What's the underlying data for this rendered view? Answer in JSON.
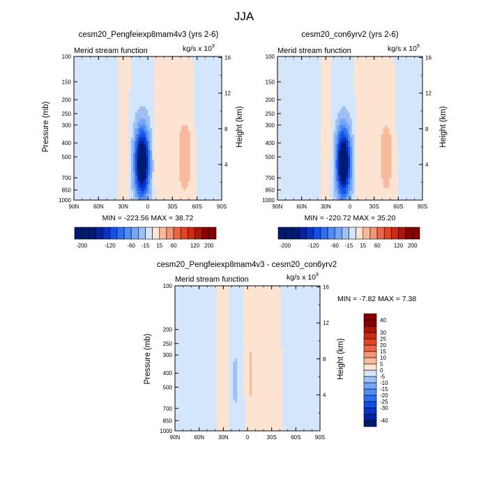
{
  "figure": {
    "title": "JJA"
  },
  "chart_data": [
    {
      "type": "heatmap",
      "title": "cesm20_Pengfeiexp8mam4v3 (yrs 2-6)",
      "subtitle_left": "Merid stream function",
      "subtitle_right": "kg/s x 10",
      "unit_exponent": "9",
      "ylabel": "Pressure (mb)",
      "ylabel_right": "Height (km)",
      "x_ticks": [
        "90N",
        "60N",
        "30N",
        "0",
        "30S",
        "60S",
        "90S"
      ],
      "y_ticks": [
        "100",
        "150",
        "200",
        "250",
        "300",
        "400",
        "500",
        "700",
        "850",
        "1000"
      ],
      "y_right_ticks": [
        "16",
        "12",
        "8",
        "4"
      ],
      "stats_text": "MIN = -223.56  MAX =  38.72",
      "min": -223.56,
      "max": 38.72,
      "levels": [
        -200,
        -180,
        -160,
        -140,
        -120,
        -100,
        -80,
        -60,
        -40,
        -15,
        0,
        15,
        40,
        60,
        80,
        100,
        120,
        160,
        200
      ],
      "colorbar_labels": [
        "-200",
        "-120",
        "-60",
        "-15",
        "15",
        "60",
        "120",
        "200"
      ],
      "features": [
        {
          "lat": 7,
          "lat_halfwidth": 9,
          "p_center": 550,
          "peak": -220
        },
        {
          "lat": -45,
          "lat_halfwidth": 8,
          "p_center": 500,
          "peak": 38
        },
        {
          "lat": -12,
          "lat_halfwidth": 8,
          "p_center": 500,
          "peak": 14
        },
        {
          "lat": 55,
          "lat_halfwidth": 14,
          "p_center": 500,
          "peak": -12
        },
        {
          "lat": 25,
          "lat_halfwidth": 10,
          "p_center": 500,
          "peak": 8
        },
        {
          "lat": -70,
          "lat_halfwidth": 10,
          "p_center": 400,
          "peak": -8
        }
      ]
    },
    {
      "type": "heatmap",
      "title": "cesm20_con6yrv2 (yrs 2-6)",
      "subtitle_left": "Merid stream function",
      "subtitle_right": "kg/s x 10",
      "unit_exponent": "9",
      "ylabel": "Pressure (mb)",
      "ylabel_right": "Height (km)",
      "x_ticks": [
        "90N",
        "60N",
        "30N",
        "0",
        "30S",
        "60S",
        "90S"
      ],
      "y_ticks": [
        "100",
        "150",
        "200",
        "250",
        "300",
        "400",
        "500",
        "700",
        "850",
        "1000"
      ],
      "y_right_ticks": [
        "16",
        "12",
        "8",
        "4"
      ],
      "stats_text": "MIN = -220.72  MAX =  35.20",
      "min": -220.72,
      "max": 35.2,
      "levels": [
        -200,
        -180,
        -160,
        -140,
        -120,
        -100,
        -80,
        -60,
        -40,
        -15,
        0,
        15,
        40,
        60,
        80,
        100,
        120,
        160,
        200
      ],
      "colorbar_labels": [
        "-200",
        "-120",
        "-60",
        "-15",
        "15",
        "60",
        "120",
        "200"
      ],
      "features": [
        {
          "lat": 8,
          "lat_halfwidth": 9,
          "p_center": 550,
          "peak": -218
        },
        {
          "lat": -45,
          "lat_halfwidth": 8,
          "p_center": 500,
          "peak": 35
        },
        {
          "lat": -12,
          "lat_halfwidth": 8,
          "p_center": 500,
          "peak": 14
        },
        {
          "lat": 55,
          "lat_halfwidth": 14,
          "p_center": 500,
          "peak": -12
        },
        {
          "lat": 25,
          "lat_halfwidth": 10,
          "p_center": 500,
          "peak": 8
        },
        {
          "lat": -70,
          "lat_halfwidth": 10,
          "p_center": 400,
          "peak": -8
        }
      ]
    },
    {
      "type": "heatmap",
      "title": "cesm20_Pengfeiexp8mam4v3 - cesm20_con6yrv2",
      "subtitle_left": "Merid stream function",
      "subtitle_right": "kg/s x 10",
      "unit_exponent": "9",
      "ylabel": "Pressure (mb)",
      "ylabel_right": "Height (km)",
      "x_ticks": [
        "90N",
        "60N",
        "30N",
        "0",
        "30S",
        "60S",
        "90S"
      ],
      "y_ticks": [
        "100",
        "200",
        "250",
        "300",
        "400",
        "500",
        "700",
        "850",
        "1000"
      ],
      "y_right_ticks": [
        "16",
        "12",
        "8",
        "4"
      ],
      "stats_text": "MIN = -7.82  MAX =  7.38",
      "min": -7.82,
      "max": 7.38,
      "levels": [
        -40,
        -35,
        -30,
        -25,
        -20,
        -15,
        -10,
        -5,
        0,
        5,
        10,
        15,
        20,
        25,
        30,
        35,
        40
      ],
      "colorbar_labels": [
        "40",
        "30",
        "25",
        "20",
        "15",
        "10",
        "5",
        "0",
        "-5",
        "-10",
        "-15",
        "-20",
        "-25",
        "-30",
        "-40"
      ],
      "features": [
        {
          "lat": 15,
          "lat_halfwidth": 4,
          "p_center": 450,
          "peak": -7.8
        },
        {
          "lat": -4,
          "lat_halfwidth": 3,
          "p_center": 400,
          "peak": 7.4
        },
        {
          "lat": 60,
          "lat_halfwidth": 22,
          "p_center": 500,
          "peak": -2
        },
        {
          "lat": -70,
          "lat_halfwidth": 14,
          "p_center": 500,
          "peak": -2
        },
        {
          "lat": 32,
          "lat_halfwidth": 6,
          "p_center": 500,
          "peak": 2
        },
        {
          "lat": -25,
          "lat_halfwidth": 10,
          "p_center": 600,
          "peak": 2
        }
      ]
    }
  ]
}
